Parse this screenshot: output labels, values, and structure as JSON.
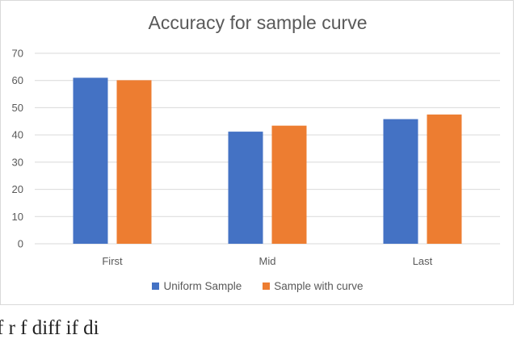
{
  "chart_data": {
    "type": "bar",
    "title": "Accuracy for sample curve",
    "categories": [
      "First",
      "Mid",
      "Last"
    ],
    "series": [
      {
        "name": "Uniform Sample",
        "color": "#4472C4",
        "values": [
          61,
          41.2,
          45.8
        ]
      },
      {
        "name": "Sample with curve",
        "color": "#ED7D31",
        "values": [
          60.1,
          43.4,
          47.5
        ]
      }
    ],
    "ylim": [
      0,
      70
    ],
    "yticks": [
      0,
      10,
      20,
      30,
      40,
      50,
      60,
      70
    ],
    "grid": true,
    "legend_position": "bottom"
  },
  "caption": {
    "text": "f  r        f   diff                                     if            di"
  }
}
